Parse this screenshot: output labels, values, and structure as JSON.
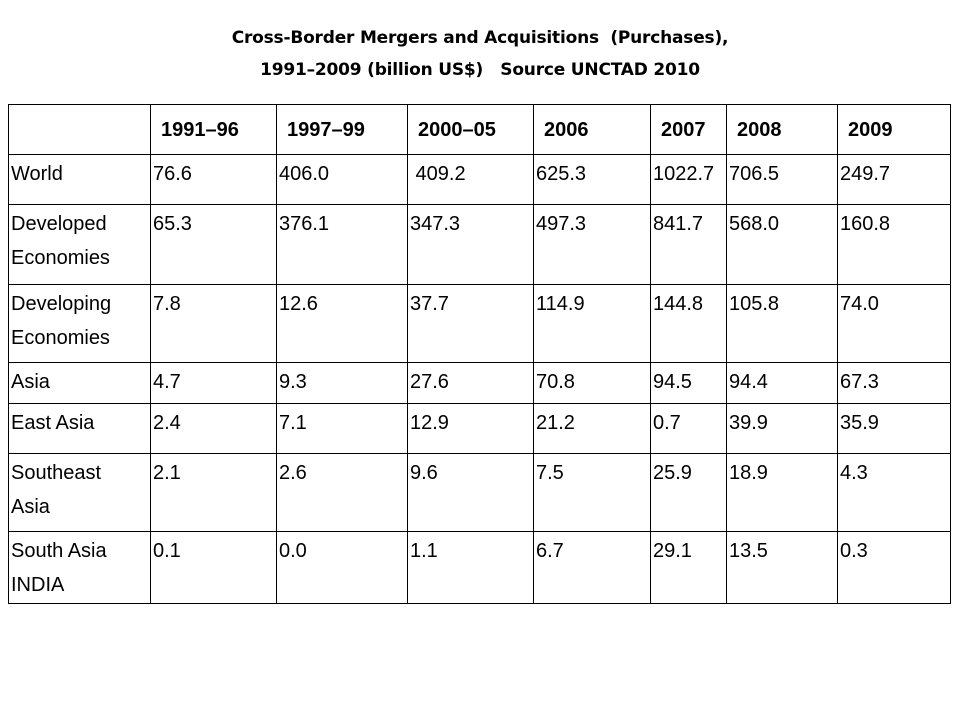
{
  "title": {
    "line1": "Cross-Border Mergers and Acquisitions  (Purchases),",
    "line2": "1991–2009 (billion US$)   Source UNCTAD 2010"
  },
  "table": {
    "corner": "",
    "headers": [
      "1991–96",
      "1997–99",
      "2000–05",
      "2006",
      "2007",
      "2008",
      "2009"
    ],
    "rows": [
      {
        "label": "World",
        "values": [
          "76.6",
          "406.0",
          " 409.2",
          "625.3",
          "1022.7",
          "706.5",
          "249.7"
        ]
      },
      {
        "label": "Developed Economies",
        "values": [
          "65.3",
          "376.1",
          "347.3",
          "497.3",
          "841.7",
          "568.0",
          "160.8"
        ]
      },
      {
        "label": "Developing Economies",
        "values": [
          "7.8",
          "12.6",
          "37.7",
          "114.9",
          "144.8",
          "105.8",
          "74.0"
        ]
      },
      {
        "label": "Asia",
        "values": [
          "4.7",
          "9.3",
          "27.6",
          "70.8",
          "94.5",
          "94.4",
          "67.3"
        ]
      },
      {
        "label": "East Asia",
        "values": [
          "2.4",
          "7.1",
          "12.9",
          "21.2",
          "0.7",
          "39.9",
          "35.9"
        ]
      },
      {
        "label": "Southeast Asia",
        "values": [
          "2.1",
          "2.6",
          "9.6",
          "7.5",
          "25.9",
          "18.9",
          "4.3"
        ]
      },
      {
        "label": "South Asia INDIA",
        "values": [
          "0.1",
          "0.0",
          "1.1",
          "6.7",
          "29.1",
          "13.5",
          "0.3"
        ]
      }
    ]
  }
}
